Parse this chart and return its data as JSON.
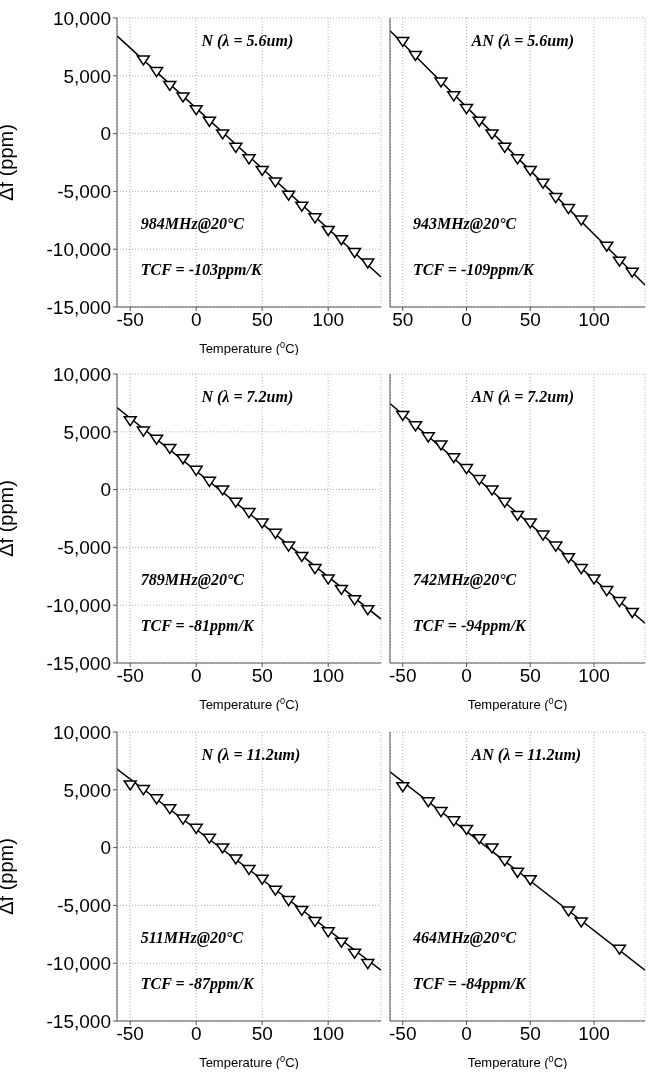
{
  "chart_data": [
    {
      "type": "scatter",
      "xlabel": "Temperature ($^{0}$C)",
      "ylabel": "Δf (ppm)",
      "annotations": [
        "N (λ = 5.6um)",
        "984MHz@20°C",
        "TCF = -103ppm/K"
      ],
      "xlim": [
        -60,
        140
      ],
      "ylim": [
        -15000,
        10000
      ],
      "xticks": [
        -50,
        0,
        50,
        100
      ],
      "yticks": [
        {
          "value": -15000,
          "label": "-15,000"
        },
        {
          "value": -10000,
          "label": "-10,000"
        },
        {
          "value": -5000,
          "label": "-5,000"
        },
        0,
        {
          "value": 5000,
          "label": "5,000"
        },
        {
          "value": 10000,
          "label": "10,000"
        }
      ],
      "grid": true,
      "series": [
        {
          "type": "scatter",
          "marker": "triangle",
          "color": "#000000",
          "x": [
            -40,
            -30,
            -20,
            -10,
            0,
            10,
            20,
            30,
            40,
            50,
            60,
            70,
            80,
            90,
            100,
            110,
            120,
            130
          ],
          "values": [
            6400,
            5400,
            4200,
            3200,
            2100,
            1100,
            0,
            -1150,
            -2150,
            -3150,
            -4150,
            -5300,
            -6250,
            -7250,
            -8350,
            -9150,
            -10250,
            -11150
          ]
        },
        {
          "type": "line",
          "marker": "none",
          "color": "#000000",
          "x": [
            -60,
            140
          ],
          "values": [
            8450,
            -12400
          ]
        }
      ]
    },
    {
      "type": "scatter",
      "annotations": [
        "AN (λ = 5.6um)",
        "943MHz@20°C",
        "TCF = -109ppm/K"
      ],
      "xlim": [
        -60,
        140
      ],
      "ylim": [
        -15000,
        10000
      ],
      "xticks": [
        {
          "value": -50,
          "label": "50"
        },
        0,
        50,
        100
      ],
      "yticks": [
        -15000,
        -10000,
        -5000,
        0,
        5000,
        10000
      ],
      "grid": true,
      "tick_labels": "x",
      "series": [
        {
          "type": "scatter",
          "marker": "triangle",
          "color": "#000000",
          "x": [
            -50,
            -40,
            -20,
            -10,
            0,
            10,
            20,
            30,
            40,
            50,
            60,
            70,
            80,
            90,
            110,
            120,
            130
          ],
          "values": [
            8000,
            6800,
            4500,
            3300,
            2200,
            1100,
            0,
            -1150,
            -2150,
            -3150,
            -4250,
            -5500,
            -6450,
            -7450,
            -9700,
            -11000,
            -11950
          ]
        },
        {
          "type": "line",
          "marker": "none",
          "color": "#000000",
          "x": [
            -60,
            140
          ],
          "values": [
            8900,
            -13100
          ]
        }
      ]
    },
    {
      "type": "scatter",
      "xlabel": "Temperature ($^{0}$C)",
      "ylabel": "Δf (ppm)",
      "annotations": [
        "N (λ = 7.2um)",
        "789MHz@20°C",
        "TCF = -81ppm/K"
      ],
      "xlim": [
        -60,
        140
      ],
      "ylim": [
        -15000,
        10000
      ],
      "xticks": [
        -50,
        0,
        50,
        100
      ],
      "yticks": [
        {
          "value": -15000,
          "label": "-15,000"
        },
        {
          "value": -10000,
          "label": "-10,000"
        },
        {
          "value": -5000,
          "label": "-5,000"
        },
        0,
        {
          "value": 5000,
          "label": "5,000"
        },
        {
          "value": 10000,
          "label": "10,000"
        }
      ],
      "grid": true,
      "series": [
        {
          "type": "scatter",
          "marker": "triangle",
          "color": "#000000",
          "x": [
            -50,
            -40,
            -30,
            -20,
            -10,
            0,
            10,
            20,
            30,
            40,
            50,
            60,
            70,
            80,
            90,
            100,
            110,
            120,
            130
          ],
          "values": [
            6000,
            5100,
            4400,
            3600,
            2700,
            1700,
            750,
            0,
            -1050,
            -1950,
            -2850,
            -3750,
            -4850,
            -5750,
            -6800,
            -7700,
            -8600,
            -9500,
            -10350
          ]
        },
        {
          "type": "line",
          "marker": "none",
          "color": "#000000",
          "x": [
            -60,
            140
          ],
          "values": [
            7100,
            -11200
          ]
        }
      ]
    },
    {
      "type": "scatter",
      "xlabel": "Temperature ($^{0}$C)",
      "annotations": [
        "AN (λ = 7.2um)",
        "742MHz@20°C",
        "TCF = -94ppm/K"
      ],
      "xlim": [
        -60,
        140
      ],
      "ylim": [
        -15000,
        10000
      ],
      "xticks": [
        -50,
        0,
        50,
        100
      ],
      "yticks": [
        -15000,
        -10000,
        -5000,
        0,
        5000,
        10000
      ],
      "grid": true,
      "tick_labels": "x",
      "series": [
        {
          "type": "scatter",
          "marker": "triangle",
          "color": "#000000",
          "x": [
            -50,
            -40,
            -30,
            -20,
            -10,
            0,
            10,
            20,
            30,
            40,
            50,
            60,
            70,
            80,
            90,
            100,
            110,
            120,
            130
          ],
          "values": [
            6450,
            5550,
            4600,
            3900,
            2800,
            1850,
            900,
            0,
            -1050,
            -2200,
            -2850,
            -3900,
            -4850,
            -5850,
            -6800,
            -7700,
            -8700,
            -9650,
            -10600
          ]
        },
        {
          "type": "line",
          "marker": "none",
          "color": "#000000",
          "x": [
            -60,
            140
          ],
          "values": [
            7450,
            -11550
          ]
        }
      ]
    },
    {
      "type": "scatter",
      "xlabel": "Temperature ($^{0}$C)",
      "ylabel": "Δf (ppm)",
      "annotations": [
        "N (λ = 11.2um)",
        "511MHz@20°C",
        "TCF = -87ppm/K"
      ],
      "xlim": [
        -60,
        140
      ],
      "ylim": [
        -15000,
        10000
      ],
      "xticks": [
        -50,
        0,
        50,
        100
      ],
      "yticks": [
        {
          "value": -15000,
          "label": "-15,000"
        },
        {
          "value": -10000,
          "label": "-10,000"
        },
        {
          "value": -5000,
          "label": "-5,000"
        },
        0,
        {
          "value": 5000,
          "label": "5,000"
        },
        {
          "value": 10000,
          "label": "10,000"
        }
      ],
      "grid": true,
      "series": [
        {
          "type": "scatter",
          "marker": "triangle",
          "color": "#000000",
          "x": [
            -50,
            -40,
            -30,
            -20,
            -10,
            0,
            10,
            20,
            30,
            40,
            50,
            60,
            70,
            80,
            90,
            100,
            110,
            120,
            130
          ],
          "values": [
            5450,
            5050,
            4250,
            3400,
            2500,
            1700,
            850,
            0,
            -950,
            -1850,
            -2700,
            -3650,
            -4550,
            -5400,
            -6350,
            -7250,
            -8150,
            -9100,
            -10000
          ]
        },
        {
          "type": "line",
          "marker": "none",
          "color": "#000000",
          "x": [
            -60,
            140
          ],
          "values": [
            6800,
            -10600
          ]
        }
      ]
    },
    {
      "type": "scatter",
      "xlabel": "Temperature ($^{0}$C)",
      "annotations": [
        "AN (λ = 11.2um)",
        "464MHz@20°C",
        "TCF = -84ppm/K"
      ],
      "xlim": [
        -60,
        140
      ],
      "ylim": [
        -15000,
        10000
      ],
      "xticks": [
        -50,
        0,
        50,
        100
      ],
      "yticks": [
        -15000,
        -10000,
        -5000,
        0,
        5000,
        10000
      ],
      "grid": true,
      "tick_labels": "x",
      "series": [
        {
          "type": "scatter",
          "marker": "triangle",
          "color": "#000000",
          "x": [
            -50,
            -30,
            -20,
            -10,
            0,
            10,
            20,
            30,
            40,
            50,
            80,
            90,
            120
          ],
          "values": [
            5300,
            4000,
            3150,
            2350,
            1600,
            800,
            0,
            -1100,
            -2100,
            -2750,
            -5450,
            -6400,
            -8750
          ]
        },
        {
          "type": "line",
          "marker": "none",
          "color": "#000000",
          "x": [
            -60,
            140
          ],
          "values": [
            6550,
            -10600
          ]
        }
      ]
    }
  ]
}
